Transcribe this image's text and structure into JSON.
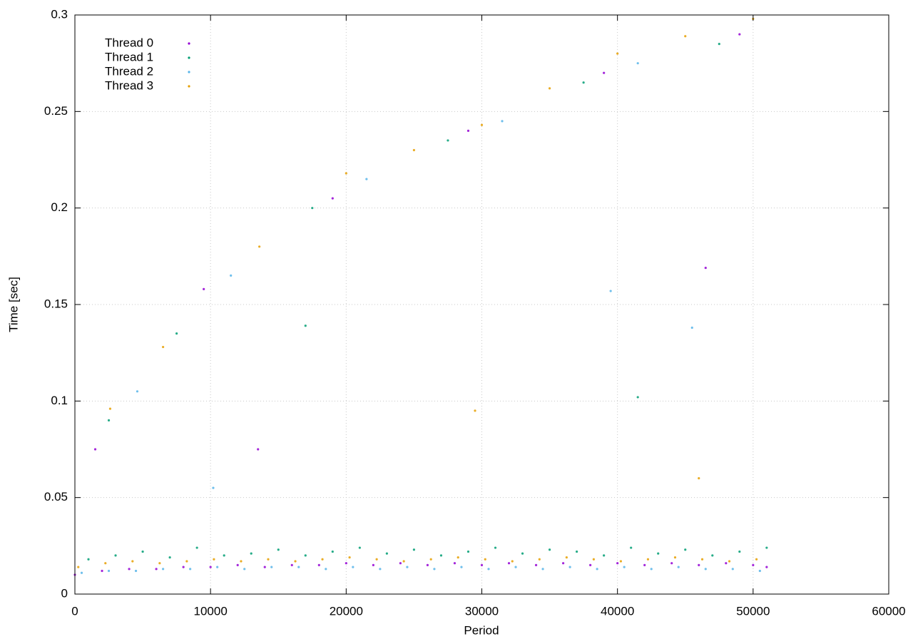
{
  "chart_data": {
    "type": "scatter",
    "x_label": "Period",
    "y_label": "Time [sec]",
    "xlim": [
      0,
      60000
    ],
    "ylim": [
      0,
      0.3
    ],
    "xticks": [
      0,
      10000,
      20000,
      30000,
      40000,
      50000,
      60000
    ],
    "yticks": [
      0,
      0.05,
      0.1,
      0.15,
      0.2,
      0.25,
      0.3
    ],
    "grid": true,
    "legend": "upper left",
    "series": [
      {
        "name": "Thread 0",
        "color": "#9400d3",
        "x": [
          0,
          2000,
          4000,
          6000,
          8000,
          10000,
          12000,
          14000,
          16000,
          18000,
          20000,
          22000,
          24000,
          26000,
          28000,
          30000,
          32000,
          34000,
          36000,
          38000,
          40000,
          42000,
          44000,
          46000,
          48000,
          50000,
          51000,
          1500,
          9500,
          19000,
          29000,
          39000,
          49000,
          13500,
          46500
        ],
        "values": [
          0.01,
          0.012,
          0.013,
          0.013,
          0.014,
          0.014,
          0.015,
          0.014,
          0.015,
          0.015,
          0.016,
          0.015,
          0.016,
          0.015,
          0.016,
          0.015,
          0.016,
          0.015,
          0.016,
          0.015,
          0.016,
          0.015,
          0.016,
          0.015,
          0.016,
          0.015,
          0.014,
          0.075,
          0.158,
          0.205,
          0.24,
          0.27,
          0.29,
          0.075,
          0.169
        ]
      },
      {
        "name": "Thread 1",
        "color": "#009e73",
        "x": [
          1000,
          3000,
          5000,
          7000,
          9000,
          11000,
          13000,
          15000,
          17000,
          19000,
          21000,
          23000,
          25000,
          27000,
          29000,
          31000,
          33000,
          35000,
          37000,
          39000,
          41000,
          43000,
          45000,
          47000,
          49000,
          51000,
          2500,
          7500,
          17500,
          27500,
          37500,
          47500,
          17000,
          41500
        ],
        "values": [
          0.018,
          0.02,
          0.022,
          0.019,
          0.024,
          0.02,
          0.021,
          0.023,
          0.02,
          0.022,
          0.024,
          0.021,
          0.023,
          0.02,
          0.022,
          0.024,
          0.021,
          0.023,
          0.022,
          0.02,
          0.024,
          0.021,
          0.023,
          0.02,
          0.022,
          0.024,
          0.09,
          0.135,
          0.2,
          0.235,
          0.265,
          0.285,
          0.139,
          0.102
        ]
      },
      {
        "name": "Thread 2",
        "color": "#56b4e9",
        "x": [
          500,
          2500,
          4500,
          6500,
          8500,
          10500,
          12500,
          14500,
          16500,
          18500,
          20500,
          22500,
          24500,
          26500,
          28500,
          30500,
          32500,
          34500,
          36500,
          38500,
          40500,
          42500,
          44500,
          46500,
          48500,
          50500,
          4600,
          11500,
          21500,
          31500,
          41500,
          10200,
          39500,
          45500
        ],
        "values": [
          0.011,
          0.012,
          0.012,
          0.013,
          0.013,
          0.014,
          0.013,
          0.014,
          0.014,
          0.013,
          0.014,
          0.013,
          0.014,
          0.013,
          0.014,
          0.013,
          0.014,
          0.013,
          0.014,
          0.013,
          0.014,
          0.013,
          0.014,
          0.013,
          0.013,
          0.012,
          0.105,
          0.165,
          0.215,
          0.245,
          0.275,
          0.055,
          0.157,
          0.138
        ]
      },
      {
        "name": "Thread 3",
        "color": "#e69f00",
        "x": [
          250,
          2250,
          4250,
          6250,
          8250,
          10250,
          12250,
          14250,
          16250,
          18250,
          20250,
          22250,
          24250,
          26250,
          28250,
          30250,
          32250,
          34250,
          36250,
          38250,
          40250,
          42250,
          44250,
          46250,
          48250,
          50250,
          2600,
          6500,
          13600,
          20000,
          25000,
          30000,
          35000,
          40000,
          45000,
          50000,
          29500,
          46000
        ],
        "values": [
          0.014,
          0.016,
          0.017,
          0.016,
          0.017,
          0.018,
          0.017,
          0.018,
          0.017,
          0.018,
          0.019,
          0.018,
          0.017,
          0.018,
          0.019,
          0.018,
          0.017,
          0.018,
          0.019,
          0.018,
          0.017,
          0.018,
          0.019,
          0.018,
          0.017,
          0.018,
          0.096,
          0.128,
          0.18,
          0.218,
          0.23,
          0.243,
          0.262,
          0.28,
          0.289,
          0.298,
          0.095,
          0.06
        ]
      }
    ]
  }
}
